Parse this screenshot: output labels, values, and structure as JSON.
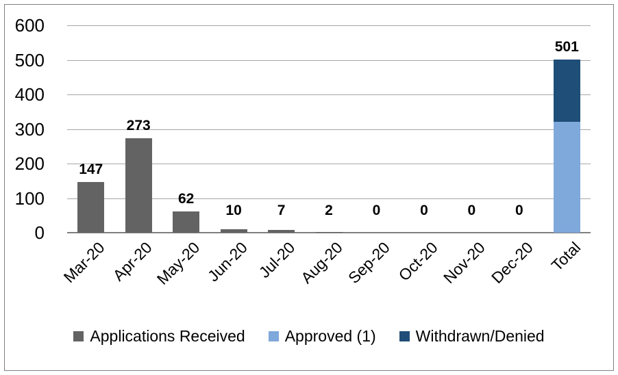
{
  "colors": {
    "gridline": "#A6A6A6",
    "axis_line": "#7F7F7F",
    "frame_border": "#7F7F7F",
    "text": "#000000",
    "applications_gray": "#636363",
    "approved_light_blue": "#7FA8DB",
    "withdrawn_dark_blue": "#1F4E79"
  },
  "chart_data": {
    "type": "bar",
    "title": "",
    "xlabel": "",
    "ylabel": "",
    "categories": [
      "Mar-20",
      "Apr-20",
      "May-20",
      "Jun-20",
      "Jul-20",
      "Aug-20",
      "Sep-20",
      "Oct-20",
      "Nov-20",
      "Dec-20",
      "Total"
    ],
    "series": [
      {
        "name": "Applications Received",
        "color": "#636363",
        "values": [
          147,
          273,
          62,
          10,
          7,
          2,
          0,
          0,
          0,
          0,
          null
        ]
      },
      {
        "name": "Approved (1)",
        "color": "#7FA8DB",
        "values": [
          null,
          null,
          null,
          null,
          null,
          null,
          null,
          null,
          null,
          null,
          320
        ]
      },
      {
        "name": "Withdrawn/Denied",
        "color": "#1F4E79",
        "values": [
          null,
          null,
          null,
          null,
          null,
          null,
          null,
          null,
          null,
          null,
          181
        ]
      }
    ],
    "bar_labels": [
      "147",
      "273",
      "62",
      "10",
      "7",
      "2",
      "0",
      "0",
      "0",
      "0",
      "501"
    ],
    "stacked_total_category": "Total",
    "y_axis": {
      "min": 0,
      "max": 600,
      "step": 100,
      "tick_labels": [
        "600",
        "500",
        "400",
        "300",
        "200",
        "100",
        "0"
      ]
    },
    "x_label_rotation_deg": 45,
    "grid": true,
    "legend_position": "bottom"
  }
}
